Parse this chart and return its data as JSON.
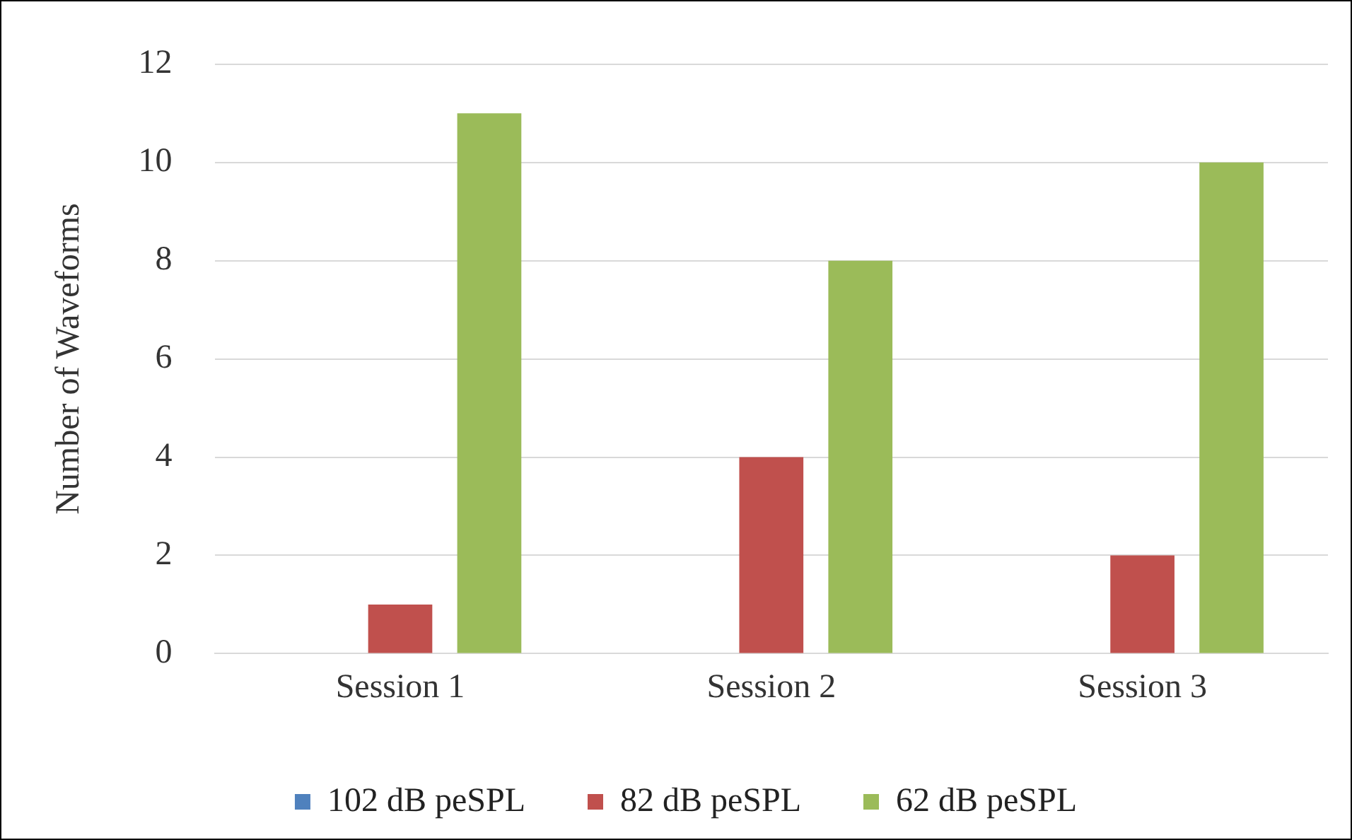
{
  "chart_data": {
    "type": "bar",
    "ylabel": "Number of Waveforms",
    "categories": [
      "Session 1",
      "Session 2",
      "Session 3"
    ],
    "series": [
      {
        "name": "102 dB peSPL",
        "color": "#4f81bd",
        "values": [
          0,
          0,
          0
        ]
      },
      {
        "name": "82 dB peSPL",
        "color": "#c0504d",
        "values": [
          1,
          4,
          2
        ]
      },
      {
        "name": "62 dB peSPL",
        "color": "#9bbb59",
        "values": [
          11,
          8,
          10
        ]
      }
    ],
    "ylim": [
      0,
      12
    ],
    "yticks": [
      0,
      2,
      4,
      6,
      8,
      10,
      12
    ],
    "grid": "y",
    "legend": "bottom"
  }
}
